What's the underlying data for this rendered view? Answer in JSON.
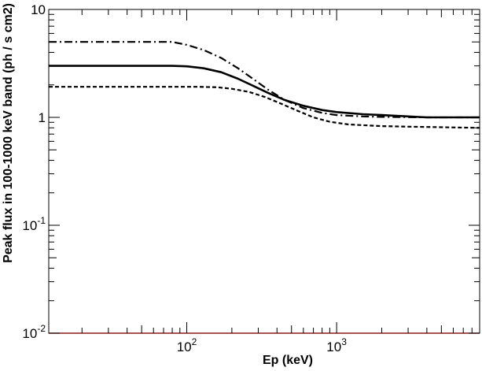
{
  "chart_data": {
    "type": "line",
    "title": "",
    "xlabel": "Ep (keV)",
    "ylabel": "Peak flux in 100-1000 keV band (ph / s cm2)",
    "x_scale": "log",
    "y_scale": "log",
    "xlim": [
      12,
      9000
    ],
    "ylim": [
      0.01,
      10
    ],
    "grid": false,
    "legend": "none",
    "x_ticks": [
      {
        "value": 100,
        "base": "10",
        "exp": "2"
      },
      {
        "value": 1000,
        "base": "10",
        "exp": "3"
      }
    ],
    "y_ticks": [
      {
        "value": 0.01,
        "base": "10",
        "exp": "-2"
      },
      {
        "value": 0.1,
        "base": "10",
        "exp": "-1"
      },
      {
        "value": 1,
        "text": "1"
      },
      {
        "value": 10,
        "text": "10"
      }
    ],
    "baseline": {
      "y": 0.01,
      "color": "#8b1a1a"
    },
    "series": [
      {
        "style": "solid",
        "color": "#000000",
        "points": [
          [
            12,
            3.0
          ],
          [
            80,
            3.0
          ],
          [
            100,
            2.97
          ],
          [
            130,
            2.85
          ],
          [
            170,
            2.62
          ],
          [
            220,
            2.28
          ],
          [
            280,
            1.95
          ],
          [
            350,
            1.68
          ],
          [
            450,
            1.45
          ],
          [
            600,
            1.28
          ],
          [
            800,
            1.17
          ],
          [
            1000,
            1.12
          ],
          [
            1500,
            1.07
          ],
          [
            2000,
            1.05
          ],
          [
            3000,
            1.02
          ],
          [
            4000,
            1.0
          ],
          [
            9000,
            1.0
          ]
        ]
      },
      {
        "style": "dashdot",
        "color": "#000000",
        "points": [
          [
            12,
            5.0
          ],
          [
            80,
            5.0
          ],
          [
            100,
            4.7
          ],
          [
            130,
            4.2
          ],
          [
            170,
            3.55
          ],
          [
            220,
            2.85
          ],
          [
            280,
            2.25
          ],
          [
            350,
            1.8
          ],
          [
            450,
            1.45
          ],
          [
            600,
            1.22
          ],
          [
            800,
            1.1
          ],
          [
            1000,
            1.05
          ],
          [
            1500,
            1.02
          ],
          [
            2000,
            1.01
          ],
          [
            4000,
            1.0
          ],
          [
            9000,
            1.0
          ]
        ]
      },
      {
        "style": "dashed",
        "color": "#000000",
        "points": [
          [
            12,
            1.92
          ],
          [
            120,
            1.92
          ],
          [
            160,
            1.9
          ],
          [
            200,
            1.84
          ],
          [
            260,
            1.72
          ],
          [
            330,
            1.55
          ],
          [
            420,
            1.35
          ],
          [
            550,
            1.15
          ],
          [
            700,
            1.0
          ],
          [
            900,
            0.91
          ],
          [
            1200,
            0.86
          ],
          [
            2000,
            0.83
          ],
          [
            3000,
            0.82
          ],
          [
            5000,
            0.81
          ],
          [
            9000,
            0.8
          ]
        ]
      }
    ]
  }
}
